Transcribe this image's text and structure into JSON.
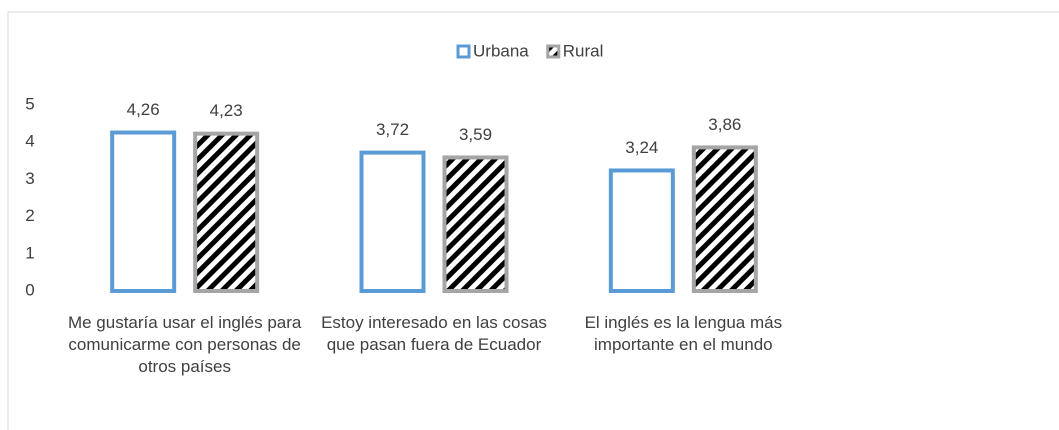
{
  "chart_data": {
    "type": "bar",
    "categories": [
      "Me gustaría usar el inglés para comunicarme con personas de otros países",
      "Estoy interesado en las cosas que pasan fuera de Ecuador",
      "El inglés es la lengua más importante en el mundo"
    ],
    "series": [
      {
        "name": "Urbana",
        "color": "#5b9bd5",
        "values": [
          4.26,
          3.72,
          3.24
        ],
        "value_labels": [
          "4,26",
          "3,72",
          "3,24"
        ]
      },
      {
        "name": "Rural",
        "color": "#a5a5a5",
        "values": [
          4.23,
          3.59,
          3.86
        ],
        "value_labels": [
          "4,23",
          "3,59",
          "3,86"
        ]
      }
    ],
    "ylim": [
      0,
      5
    ],
    "yticks": [
      0,
      1,
      2,
      3,
      4,
      5
    ],
    "grid": false,
    "legend": "top"
  }
}
